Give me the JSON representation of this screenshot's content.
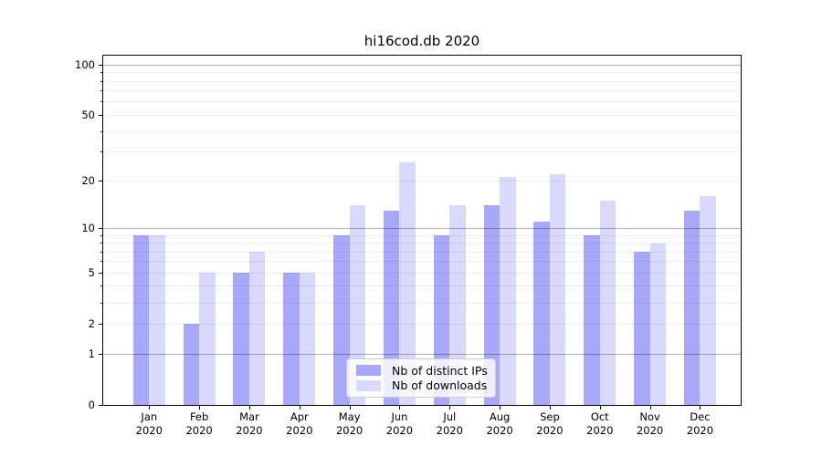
{
  "chart_data": {
    "type": "bar",
    "title": "hi16cod.db 2020",
    "x_categories": [
      "Jan",
      "Feb",
      "Mar",
      "Apr",
      "May",
      "Jun",
      "Jul",
      "Aug",
      "Sep",
      "Oct",
      "Nov",
      "Dec"
    ],
    "x_year_label": "2020",
    "series": [
      {
        "name": "Nb of distinct IPs",
        "color": "#a8a8fa",
        "values": [
          9,
          2,
          5,
          5,
          9,
          13,
          9,
          14,
          11,
          9,
          7,
          13
        ]
      },
      {
        "name": "Nb of downloads",
        "color": "#d9d9fb",
        "values": [
          9,
          5,
          7,
          5,
          14,
          26,
          14,
          21,
          22,
          15,
          8,
          16
        ]
      }
    ],
    "y_axis": {
      "scale": "log1p",
      "tick_values": [
        0,
        1,
        2,
        5,
        10,
        20,
        50,
        100
      ],
      "tick_labels": [
        "0",
        "1",
        "2",
        "5",
        "10",
        "20",
        "50",
        "100"
      ],
      "major_gridline_values": [
        1,
        10,
        100
      ],
      "minor_gridline_values": [
        2,
        3,
        4,
        5,
        6,
        7,
        8,
        9,
        20,
        30,
        40,
        50,
        60,
        70,
        80,
        90
      ],
      "ylim": [
        0,
        113
      ]
    },
    "legend": {
      "position": "lower center"
    },
    "grid": true
  }
}
